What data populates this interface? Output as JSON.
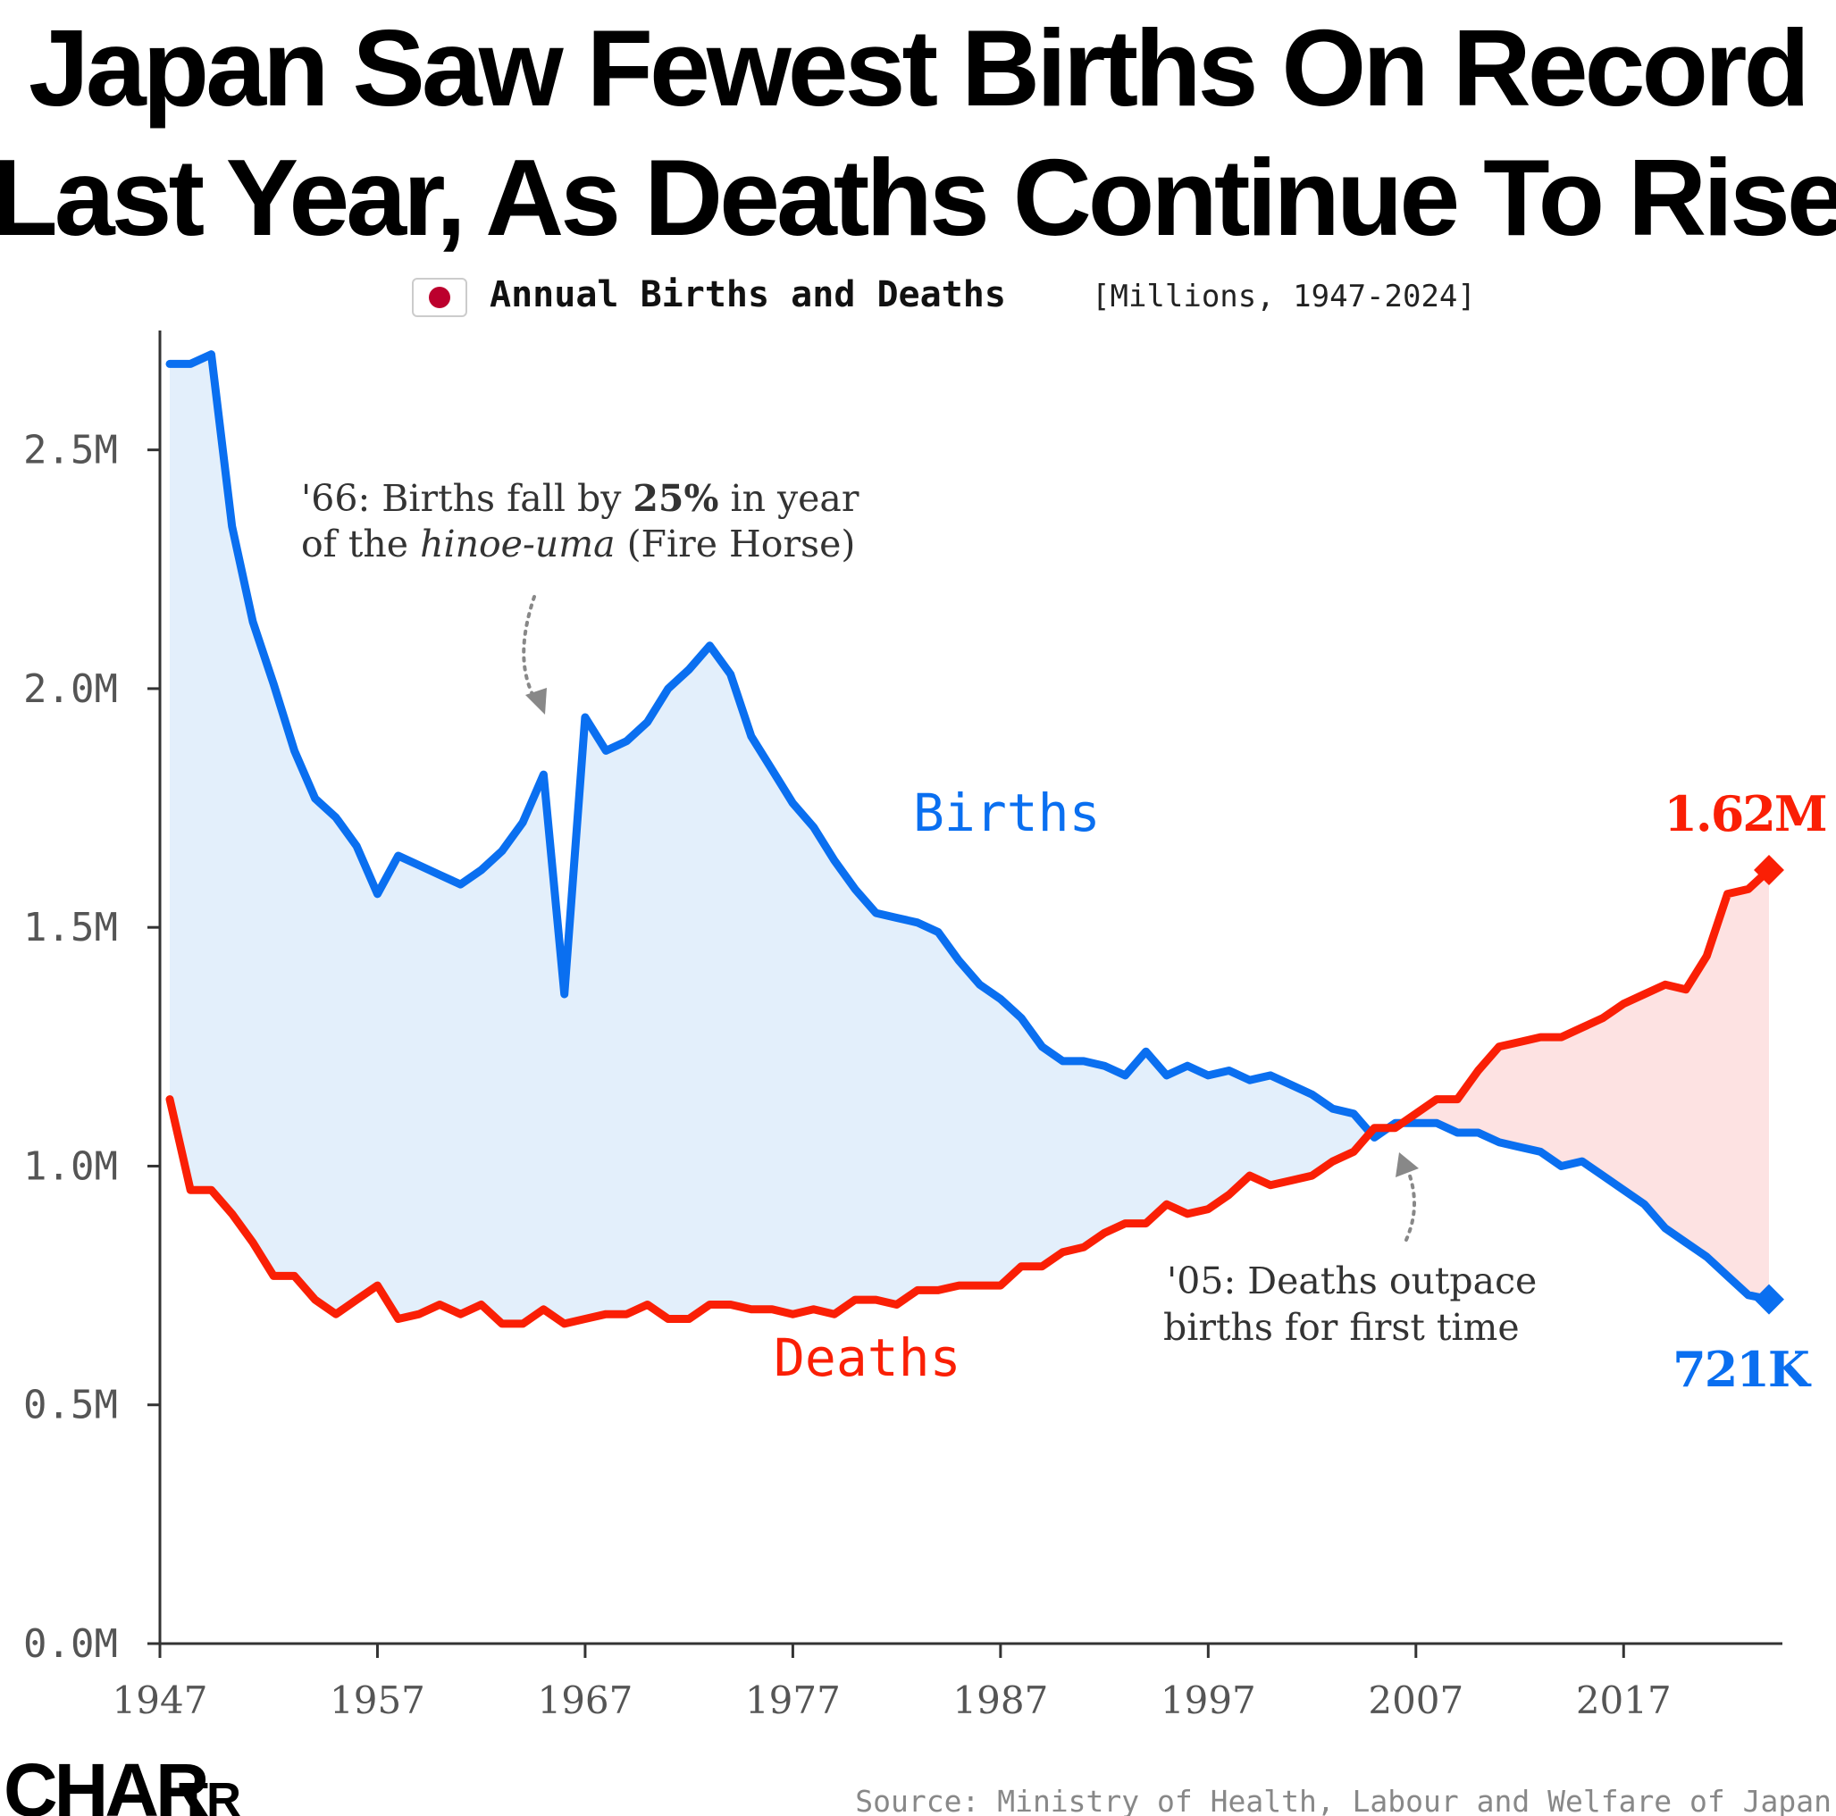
{
  "chart_data": {
    "type": "line",
    "title_lines": [
      "Japan Saw Fewest Births On Record",
      "Last Year, As Deaths Continue To Rise"
    ],
    "subtitle": {
      "bold": "Annual Births and Deaths",
      "regular": "[Millions, 1947-2024]",
      "flag_icon": "japan-flag-icon"
    },
    "ylim": [
      0,
      2.75
    ],
    "xlim": [
      1947,
      2024
    ],
    "y_ticks": [
      {
        "value": 0.0,
        "label": "0.0M"
      },
      {
        "value": 0.5,
        "label": "0.5M"
      },
      {
        "value": 1.0,
        "label": "1.0M"
      },
      {
        "value": 1.5,
        "label": "1.5M"
      },
      {
        "value": 2.0,
        "label": "2.0M"
      },
      {
        "value": 2.5,
        "label": "2.5M"
      }
    ],
    "x_ticks": [
      {
        "value": 1947,
        "label": "1947"
      },
      {
        "value": 1957,
        "label": "1957"
      },
      {
        "value": 1967,
        "label": "1967"
      },
      {
        "value": 1977,
        "label": "1977"
      },
      {
        "value": 1987,
        "label": "1987"
      },
      {
        "value": 1997,
        "label": "1997"
      },
      {
        "value": 2007,
        "label": "2007"
      },
      {
        "value": 2017,
        "label": "2017"
      }
    ],
    "x": [
      1947,
      1948,
      1949,
      1950,
      1951,
      1952,
      1953,
      1954,
      1955,
      1956,
      1957,
      1958,
      1959,
      1960,
      1961,
      1962,
      1963,
      1964,
      1965,
      1966,
      1967,
      1968,
      1969,
      1970,
      1971,
      1972,
      1973,
      1974,
      1975,
      1976,
      1977,
      1978,
      1979,
      1980,
      1981,
      1982,
      1983,
      1984,
      1985,
      1986,
      1987,
      1988,
      1989,
      1990,
      1991,
      1992,
      1993,
      1994,
      1995,
      1996,
      1997,
      1998,
      1999,
      2000,
      2001,
      2002,
      2003,
      2004,
      2005,
      2006,
      2007,
      2008,
      2009,
      2010,
      2011,
      2012,
      2013,
      2014,
      2015,
      2016,
      2017,
      2018,
      2019,
      2020,
      2021,
      2022,
      2023,
      2024
    ],
    "series": [
      {
        "name": "Births",
        "color": "#0a6ff0",
        "fill": "#e3effb",
        "values": [
          2.68,
          2.68,
          2.7,
          2.34,
          2.14,
          2.01,
          1.87,
          1.77,
          1.73,
          1.67,
          1.57,
          1.65,
          1.63,
          1.61,
          1.59,
          1.62,
          1.66,
          1.72,
          1.82,
          1.36,
          1.94,
          1.87,
          1.89,
          1.93,
          2.0,
          2.04,
          2.09,
          2.03,
          1.9,
          1.83,
          1.76,
          1.71,
          1.64,
          1.58,
          1.53,
          1.52,
          1.51,
          1.49,
          1.43,
          1.38,
          1.35,
          1.31,
          1.25,
          1.22,
          1.22,
          1.21,
          1.19,
          1.24,
          1.19,
          1.21,
          1.19,
          1.2,
          1.18,
          1.19,
          1.17,
          1.15,
          1.12,
          1.11,
          1.06,
          1.09,
          1.09,
          1.09,
          1.07,
          1.07,
          1.05,
          1.04,
          1.03,
          1.0,
          1.01,
          0.98,
          0.95,
          0.92,
          0.87,
          0.84,
          0.81,
          0.77,
          0.73,
          0.721
        ]
      },
      {
        "name": "Deaths",
        "color": "#fa1f05",
        "fill": "#fde2e2",
        "values": [
          1.14,
          0.95,
          0.95,
          0.9,
          0.84,
          0.77,
          0.77,
          0.72,
          0.69,
          0.72,
          0.75,
          0.68,
          0.69,
          0.71,
          0.69,
          0.71,
          0.67,
          0.67,
          0.7,
          0.67,
          0.68,
          0.69,
          0.69,
          0.71,
          0.68,
          0.68,
          0.71,
          0.71,
          0.7,
          0.7,
          0.69,
          0.7,
          0.69,
          0.72,
          0.72,
          0.71,
          0.74,
          0.74,
          0.75,
          0.75,
          0.75,
          0.79,
          0.79,
          0.82,
          0.83,
          0.86,
          0.88,
          0.88,
          0.92,
          0.9,
          0.91,
          0.94,
          0.98,
          0.96,
          0.97,
          0.98,
          1.01,
          1.03,
          1.08,
          1.08,
          1.11,
          1.14,
          1.14,
          1.2,
          1.25,
          1.26,
          1.27,
          1.27,
          1.29,
          1.31,
          1.34,
          1.36,
          1.38,
          1.37,
          1.44,
          1.57,
          1.58,
          1.62
        ]
      }
    ],
    "series_labels": {
      "births": "Births",
      "deaths": "Deaths"
    },
    "end_labels": {
      "deaths": "1.62M",
      "births": "721K"
    },
    "annotations": [
      {
        "name": "fire-horse-note",
        "line1_pre": "'66: Births fall by ",
        "line1_bold": "25%",
        "line1_post": " in year",
        "line2_pre": "of the ",
        "line2_italic": "hinoe-uma",
        "line2_post": " (Fire Horse)"
      },
      {
        "name": "crossover-note",
        "line1": "'05: Deaths outpace",
        "line2": "births for first time"
      }
    ],
    "grid": false,
    "legend": "none"
  },
  "footer": {
    "logo_main": "CHAR",
    "logo_small": "TR",
    "source": "Source: Ministry of Health, Labour and Welfare of Japan"
  },
  "colors": {
    "births": "#0a6ff0",
    "deaths": "#fa1f05",
    "axis": "#333333",
    "text": "#000000"
  }
}
